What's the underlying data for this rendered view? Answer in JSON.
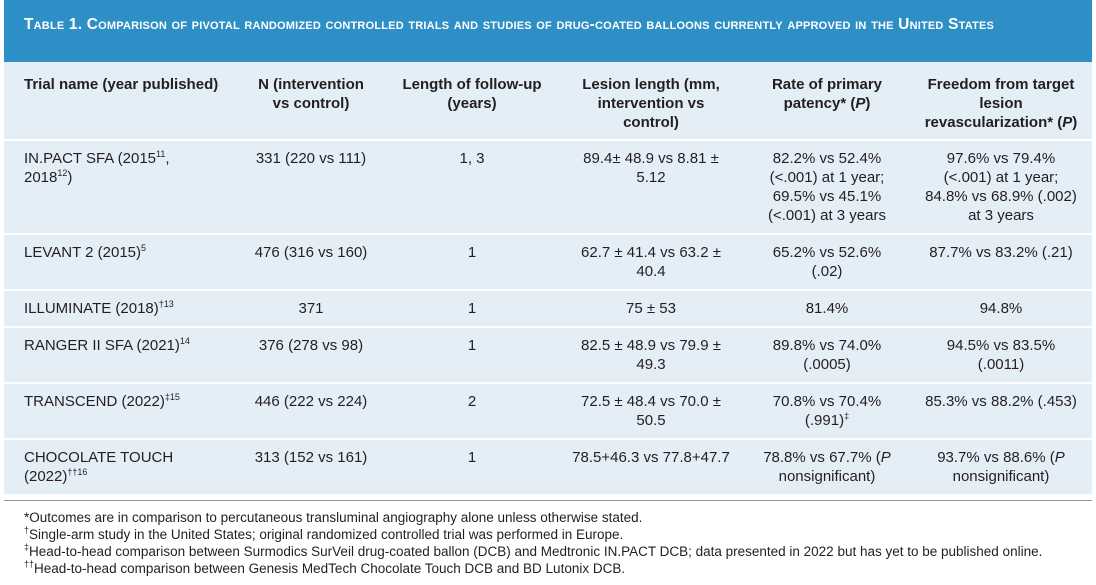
{
  "title": "Table 1. Comparison of pivotal randomized controlled trials and studies of drug-coated balloons currently approved in the United States",
  "table": {
    "header": [
      [
        "Trial name (year published)"
      ],
      [
        "N (intervention vs control)"
      ],
      [
        "Length of follow-up (years)"
      ],
      [
        "Lesion length (mm, intervention vs control)"
      ],
      [
        "Rate of primary patency* (",
        {
          "i": "P"
        },
        ")"
      ],
      [
        "Freedom from target lesion revascularization* (",
        {
          "i": "P"
        },
        ")"
      ]
    ],
    "rows": [
      [
        [
          "IN.PACT SFA (2015",
          {
            "sup": "11"
          },
          ", 2018",
          {
            "sup": "12"
          },
          ")"
        ],
        [
          "331 (220 vs 111)"
        ],
        [
          "1, 3"
        ],
        [
          "89.4± 48.9 vs 8.81 ± 5.12"
        ],
        [
          "82.2% vs 52.4% (<.001) at 1 year; 69.5% vs 45.1% (<.001) at 3 years"
        ],
        [
          "97.6% vs 79.4% (<.001) at 1 year; 84.8% vs 68.9% (.002) at 3 years"
        ]
      ],
      [
        [
          "LEVANT 2 (2015)",
          {
            "sup": "5"
          }
        ],
        [
          "476 (316 vs 160)"
        ],
        [
          "1"
        ],
        [
          "62.7 ± 41.4 vs 63.2 ± 40.4"
        ],
        [
          "65.2% vs 52.6% (.02)"
        ],
        [
          "87.7% vs 83.2% (.21)"
        ]
      ],
      [
        [
          "ILLUMINATE (2018)",
          {
            "sup": "†13"
          }
        ],
        [
          "371"
        ],
        [
          "1"
        ],
        [
          "75 ± 53"
        ],
        [
          "81.4%"
        ],
        [
          "94.8%"
        ]
      ],
      [
        [
          "RANGER II SFA (2021)",
          {
            "sup": "14"
          }
        ],
        [
          "376 (278 vs 98)"
        ],
        [
          "1"
        ],
        [
          "82.5 ± 48.9 vs 79.9 ± 49.3"
        ],
        [
          "89.8% vs 74.0% (.0005)"
        ],
        [
          "94.5% vs 83.5% (.0011)"
        ]
      ],
      [
        [
          "TRANSCEND (2022)",
          {
            "sup": "‡15"
          }
        ],
        [
          "446 (222 vs 224)"
        ],
        [
          "2"
        ],
        [
          "72.5 ± 48.4 vs 70.0 ± 50.5"
        ],
        [
          "70.8% vs 70.4% (.991)",
          {
            "sup": "‡"
          }
        ],
        [
          "85.3% vs 88.2% (.453)"
        ]
      ],
      [
        [
          "CHOCOLATE TOUCH (2022)",
          {
            "sup": "††16"
          }
        ],
        [
          "313 (152 vs 161)"
        ],
        [
          "1"
        ],
        [
          "78.5+46.3 vs 77.8+47.7"
        ],
        [
          "78.8% vs 67.7% (",
          {
            "i": "P"
          },
          " nonsignificant)"
        ],
        [
          "93.7% vs 88.6% (",
          {
            "i": "P"
          },
          " nonsignificant)"
        ]
      ]
    ]
  },
  "footnotes": [
    [
      "*Outcomes are in comparison to percutaneous transluminal angiography alone unless otherwise stated."
    ],
    [
      {
        "sup": "†"
      },
      "Single-arm study in the United States; original randomized controlled trial was performed in Europe."
    ],
    [
      {
        "sup": "‡"
      },
      "Head-to-head comparison between Surmodics SurVeil drug-coated ballon (DCB) and Medtronic IN.PACT DCB; data presented in 2022 but has yet to be published online."
    ],
    [
      {
        "sup": "††"
      },
      "Head-to-head comparison between Genesis MedTech Chocolate Touch DCB and BD Lutonix DCB."
    ]
  ]
}
